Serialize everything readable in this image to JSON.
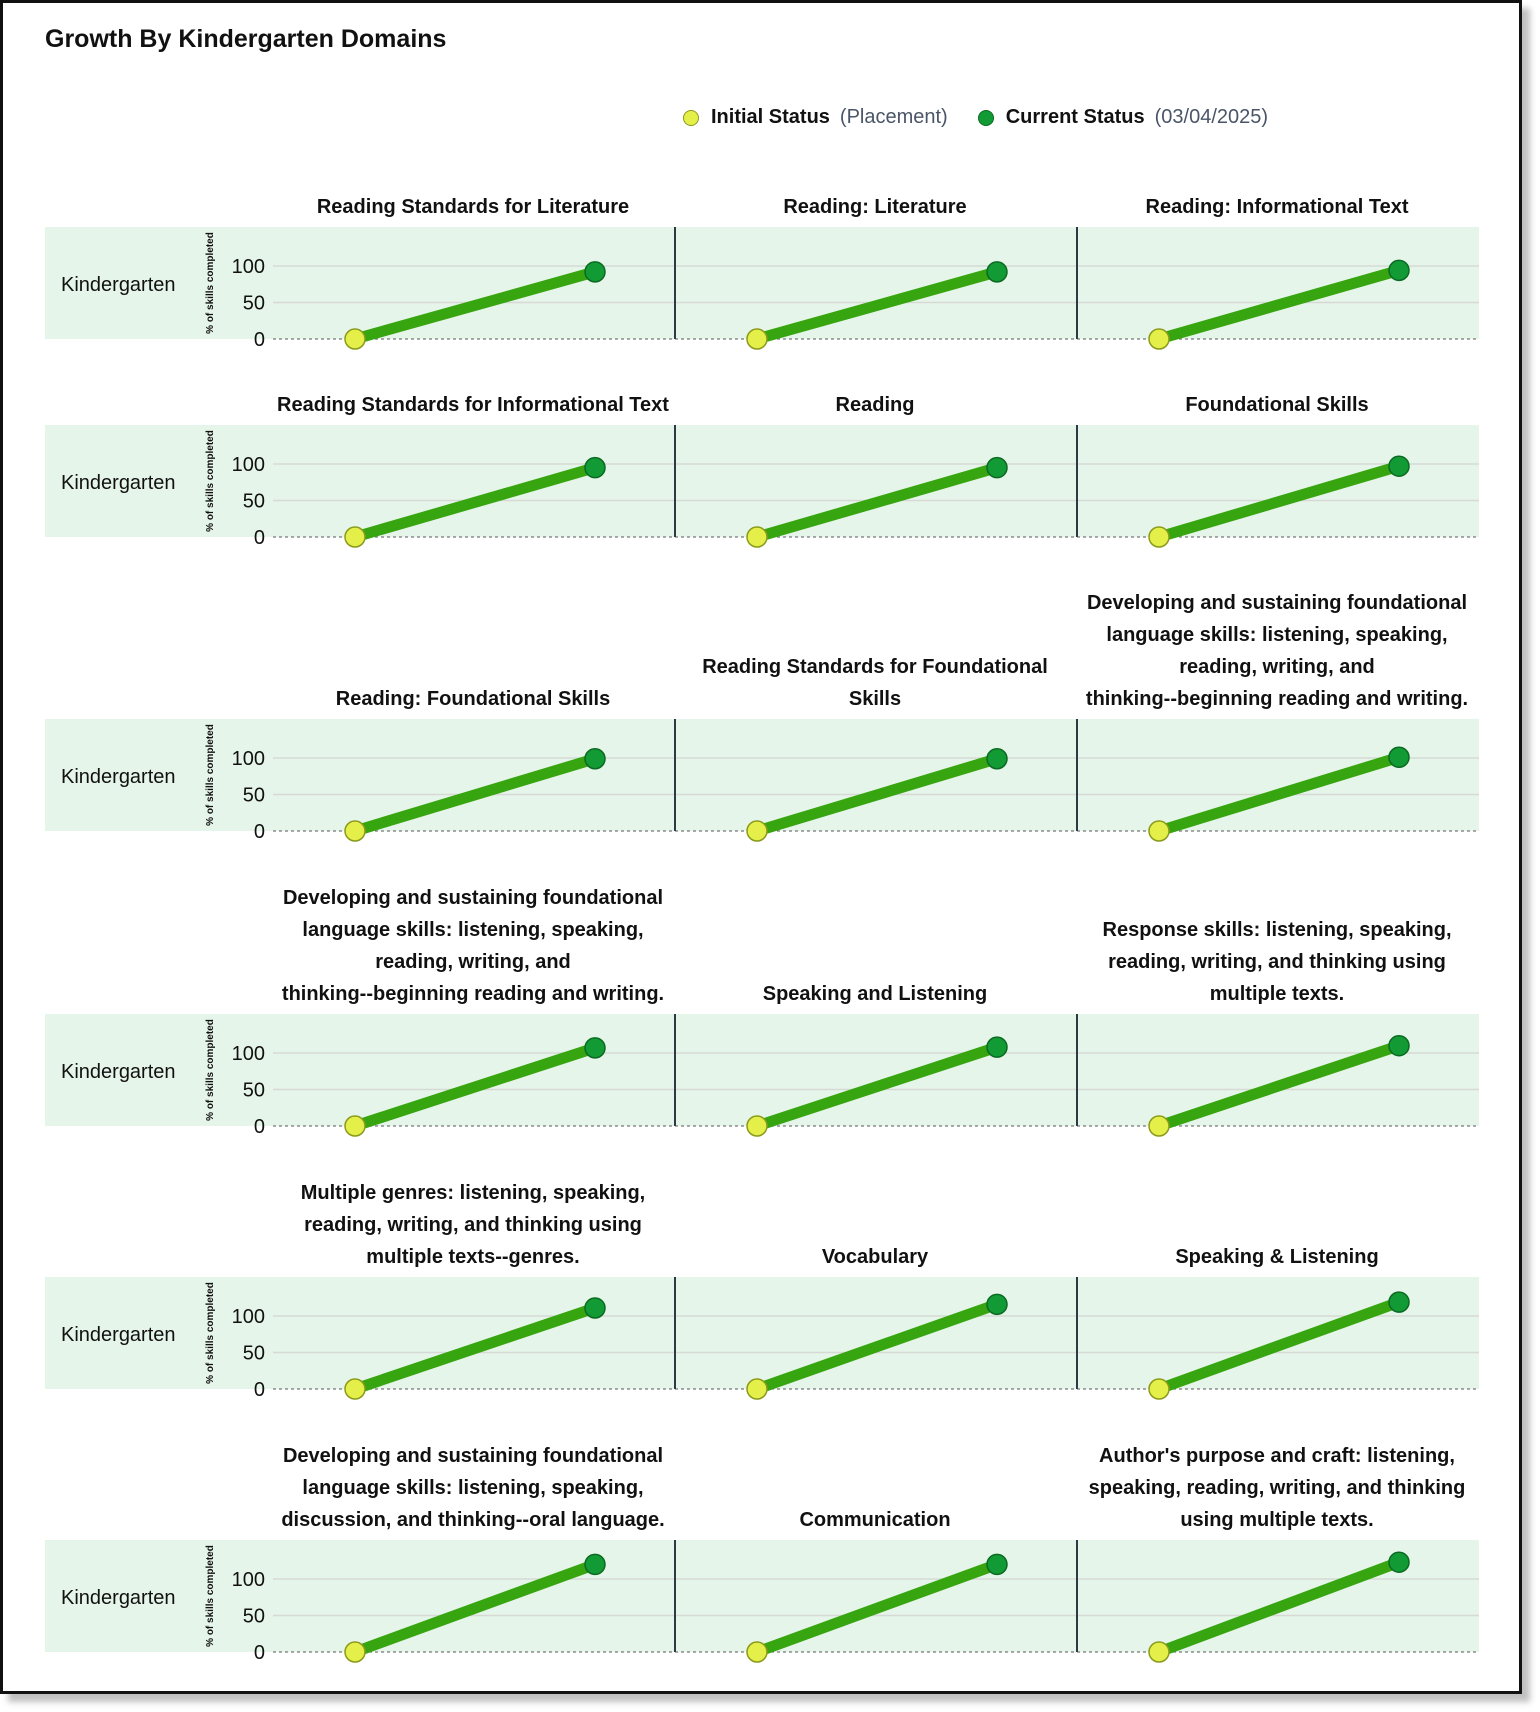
{
  "chart_data": {
    "type": "line",
    "title": "Growth By Kindergarten Domains",
    "legend": [
      {
        "name": "Initial Status",
        "sub": "(Placement)",
        "color": "#e5ef4a"
      },
      {
        "name": "Current Status",
        "sub": "(03/04/2025)",
        "color": "#129b35"
      }
    ],
    "ylabel": "% of skills completed",
    "yticks": [
      0,
      50,
      100
    ],
    "ylim": [
      0,
      110
    ],
    "line_color": "#37a50f",
    "panel_background": "#e6f5e9",
    "rows": [
      {
        "label": "Kindergarten",
        "panels": [
          {
            "title": "Reading Standards for Literature",
            "initial": 0,
            "current": 92
          },
          {
            "title": "Reading: Literature",
            "initial": 0,
            "current": 92
          },
          {
            "title": "Reading: Informational Text",
            "initial": 0,
            "current": 94
          }
        ]
      },
      {
        "label": "Kindergarten",
        "panels": [
          {
            "title": "Reading Standards for Informational Text",
            "initial": 0,
            "current": 95
          },
          {
            "title": "Reading",
            "initial": 0,
            "current": 95
          },
          {
            "title": "Foundational Skills",
            "initial": 0,
            "current": 97
          }
        ]
      },
      {
        "label": "Kindergarten",
        "panels": [
          {
            "title": "Reading: Foundational Skills",
            "initial": 0,
            "current": 99
          },
          {
            "title": "Reading Standards for Foundational Skills",
            "initial": 0,
            "current": 99
          },
          {
            "title": "Developing and sustaining foundational language skills: listening, speaking, reading, writing, and thinking--beginning reading and writing.",
            "initial": 0,
            "current": 101
          }
        ]
      },
      {
        "label": "Kindergarten",
        "panels": [
          {
            "title": "Developing and sustaining foundational language skills: listening, speaking, reading, writing, and thinking--beginning reading and writing.",
            "initial": 0,
            "current": 107
          },
          {
            "title": "Speaking and Listening",
            "initial": 0,
            "current": 108
          },
          {
            "title": "Response skills: listening, speaking, reading, writing, and thinking using multiple texts.",
            "initial": 0,
            "current": 110
          }
        ]
      },
      {
        "label": "Kindergarten",
        "panels": [
          {
            "title": "Multiple genres: listening, speaking, reading, writing, and thinking using multiple texts--genres.",
            "initial": 0,
            "current": 111
          },
          {
            "title": "Vocabulary",
            "initial": 0,
            "current": 116
          },
          {
            "title": "Speaking & Listening",
            "initial": 0,
            "current": 119
          }
        ]
      },
      {
        "label": "Kindergarten",
        "panels": [
          {
            "title": "Developing and sustaining foundational language skills: listening, speaking, discussion, and thinking--oral language.",
            "initial": 0,
            "current": 120
          },
          {
            "title": "Communication",
            "initial": 0,
            "current": 120
          },
          {
            "title": "Author's purpose and craft: listening, speaking, reading, writing, and thinking using multiple texts.",
            "initial": 0,
            "current": 123
          }
        ]
      }
    ]
  }
}
